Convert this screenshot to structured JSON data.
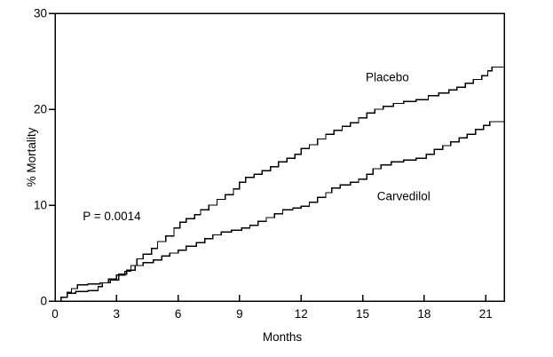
{
  "figure": {
    "background_color": "#ffffff",
    "line_color": "#000000"
  },
  "chart_data": {
    "type": "line",
    "subtype": "step-after",
    "title": "",
    "xlabel": "Months",
    "ylabel": "% Mortality",
    "xlim": [
      0,
      21.9
    ],
    "ylim": [
      0,
      30
    ],
    "x_ticks": [
      0,
      3,
      6,
      9,
      12,
      15,
      18,
      21
    ],
    "x_tick_labels": [
      "0",
      "3",
      "6",
      "9",
      "12",
      "15",
      "18",
      "21"
    ],
    "y_ticks": [
      0,
      10,
      20,
      30
    ],
    "y_tick_labels": [
      "0",
      "10",
      "20",
      "30"
    ],
    "grid": false,
    "frame": "box",
    "legend_position": "inline-labels",
    "annotation": {
      "text": "P = 0.0014",
      "x_month": 1.35,
      "y_pct": 8.8
    },
    "series": [
      {
        "name": "Placebo",
        "label_anchor": {
          "x_month": 15.15,
          "y_pct": 23.3
        },
        "points": [
          [
            0,
            0
          ],
          [
            0.3,
            0.4
          ],
          [
            0.6,
            0.9
          ],
          [
            0.8,
            1.3
          ],
          [
            1.1,
            1.7
          ],
          [
            1.6,
            1.8
          ],
          [
            2.2,
            1.9
          ],
          [
            2.6,
            2.3
          ],
          [
            3.0,
            2.7
          ],
          [
            3.4,
            3.1
          ],
          [
            3.7,
            3.7
          ],
          [
            4.0,
            4.4
          ],
          [
            4.3,
            4.9
          ],
          [
            4.7,
            5.5
          ],
          [
            5.0,
            6.2
          ],
          [
            5.4,
            6.8
          ],
          [
            5.8,
            7.6
          ],
          [
            6.1,
            8.2
          ],
          [
            6.4,
            8.6
          ],
          [
            6.8,
            9.0
          ],
          [
            7.1,
            9.5
          ],
          [
            7.5,
            10.0
          ],
          [
            7.9,
            10.6
          ],
          [
            8.3,
            11.1
          ],
          [
            8.7,
            11.7
          ],
          [
            9.0,
            12.4
          ],
          [
            9.3,
            12.9
          ],
          [
            9.7,
            13.2
          ],
          [
            10.1,
            13.6
          ],
          [
            10.5,
            14.0
          ],
          [
            10.9,
            14.5
          ],
          [
            11.3,
            14.9
          ],
          [
            11.7,
            15.3
          ],
          [
            12.0,
            15.9
          ],
          [
            12.4,
            16.3
          ],
          [
            12.8,
            16.9
          ],
          [
            13.2,
            17.4
          ],
          [
            13.6,
            17.8
          ],
          [
            14.0,
            18.2
          ],
          [
            14.4,
            18.6
          ],
          [
            14.8,
            19.1
          ],
          [
            15.2,
            19.6
          ],
          [
            15.6,
            20.0
          ],
          [
            16.0,
            20.3
          ],
          [
            16.5,
            20.6
          ],
          [
            17.0,
            20.8
          ],
          [
            17.6,
            21.0
          ],
          [
            18.2,
            21.4
          ],
          [
            18.7,
            21.7
          ],
          [
            19.2,
            22.0
          ],
          [
            19.6,
            22.3
          ],
          [
            20.0,
            22.7
          ],
          [
            20.4,
            23.1
          ],
          [
            20.8,
            23.5
          ],
          [
            21.1,
            24.0
          ],
          [
            21.3,
            24.4
          ],
          [
            21.9,
            24.4
          ]
        ]
      },
      {
        "name": "Carvedilol",
        "label_anchor": {
          "x_month": 15.7,
          "y_pct": 10.9
        },
        "points": [
          [
            0,
            0
          ],
          [
            0.3,
            0.4
          ],
          [
            0.6,
            0.8
          ],
          [
            1.0,
            1.0
          ],
          [
            1.6,
            1.1
          ],
          [
            2.1,
            1.5
          ],
          [
            2.3,
            1.9
          ],
          [
            2.7,
            2.2
          ],
          [
            3.1,
            2.8
          ],
          [
            3.5,
            3.2
          ],
          [
            3.9,
            3.7
          ],
          [
            4.3,
            4.0
          ],
          [
            4.8,
            4.3
          ],
          [
            5.2,
            4.7
          ],
          [
            5.6,
            5.0
          ],
          [
            6.0,
            5.3
          ],
          [
            6.4,
            5.7
          ],
          [
            6.9,
            6.1
          ],
          [
            7.3,
            6.5
          ],
          [
            7.7,
            6.9
          ],
          [
            8.1,
            7.2
          ],
          [
            8.6,
            7.4
          ],
          [
            9.1,
            7.6
          ],
          [
            9.5,
            7.9
          ],
          [
            9.9,
            8.3
          ],
          [
            10.3,
            8.7
          ],
          [
            10.7,
            9.1
          ],
          [
            11.1,
            9.5
          ],
          [
            11.6,
            9.7
          ],
          [
            12.0,
            9.9
          ],
          [
            12.4,
            10.3
          ],
          [
            12.8,
            10.8
          ],
          [
            13.2,
            11.3
          ],
          [
            13.5,
            11.8
          ],
          [
            13.9,
            12.1
          ],
          [
            14.4,
            12.4
          ],
          [
            14.8,
            12.7
          ],
          [
            15.2,
            13.2
          ],
          [
            15.5,
            13.8
          ],
          [
            15.9,
            14.2
          ],
          [
            16.4,
            14.5
          ],
          [
            17.0,
            14.7
          ],
          [
            17.6,
            14.9
          ],
          [
            18.1,
            15.3
          ],
          [
            18.5,
            15.8
          ],
          [
            18.9,
            16.2
          ],
          [
            19.3,
            16.6
          ],
          [
            19.7,
            17.0
          ],
          [
            20.1,
            17.4
          ],
          [
            20.5,
            17.9
          ],
          [
            20.9,
            18.3
          ],
          [
            21.2,
            18.7
          ],
          [
            21.9,
            18.7
          ]
        ]
      }
    ]
  }
}
